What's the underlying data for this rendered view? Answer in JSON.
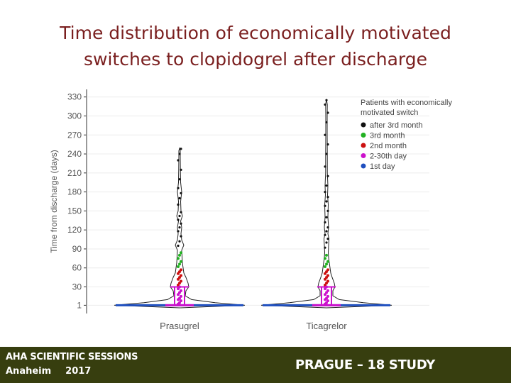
{
  "slide": {
    "title_line1": "Time distribution of economically motivated",
    "title_line2": "switches to clopidogrel after discharge"
  },
  "footer": {
    "conference": "AHA SCIENTIFIC SESSIONS",
    "city": "Anaheim",
    "year": "2017",
    "study": "PRAGUE – 18 STUDY"
  },
  "colors": {
    "after_3rd_month": "#111111",
    "third_month": "#22b022",
    "second_month": "#cc1111",
    "days_2_30": "#cc11cc",
    "first_day": "#1f4fbf"
  },
  "chart_data": {
    "type": "violin",
    "ylabel": "Time from discharge (days)",
    "y_ticks": [
      1,
      30,
      60,
      90,
      120,
      150,
      180,
      210,
      240,
      270,
      300,
      330
    ],
    "ylim": [
      -12,
      342
    ],
    "categories": [
      "Prasugrel",
      "Ticagrelor"
    ],
    "legend": {
      "title_line1": "Patients with economically",
      "title_line2": "motivated switch",
      "position": "top-right",
      "entries": [
        {
          "key": "after_3rd_month",
          "label": "after 3rd month"
        },
        {
          "key": "third_month",
          "label": "3rd month"
        },
        {
          "key": "second_month",
          "label": "2nd month"
        },
        {
          "key": "days_2_30",
          "label": "2-30th day"
        },
        {
          "key": "first_day",
          "label": "1st day"
        }
      ]
    },
    "groups": [
      {
        "name": "Prasugrel",
        "max_day": 248,
        "median": 1,
        "iqr": [
          1,
          30
        ],
        "points": {
          "first_day": [
            1
          ],
          "days_2_30": [
            3,
            5,
            8,
            10,
            12,
            15,
            18,
            21,
            24,
            27,
            30
          ],
          "second_month": [
            33,
            36,
            39,
            42,
            45,
            48,
            51,
            54,
            57
          ],
          "third_month": [
            62,
            66,
            70,
            75,
            80,
            84
          ],
          "after_3rd_month": [
            95,
            102,
            110,
            118,
            124,
            130,
            136,
            142,
            148,
            160,
            170,
            178,
            186,
            200,
            215,
            230,
            240,
            248
          ]
        }
      },
      {
        "name": "Ticagrelor",
        "max_day": 325,
        "median": 1,
        "iqr": [
          1,
          30
        ],
        "points": {
          "first_day": [
            1
          ],
          "days_2_30": [
            3,
            5,
            8,
            10,
            12,
            15,
            18,
            21,
            24,
            27,
            30
          ],
          "second_month": [
            33,
            36,
            39,
            42,
            45,
            48,
            51,
            54,
            57
          ],
          "third_month": [
            62,
            66,
            70,
            75,
            80
          ],
          "after_3rd_month": [
            92,
            100,
            106,
            112,
            118,
            124,
            132,
            140,
            150,
            158,
            165,
            172,
            180,
            190,
            205,
            220,
            240,
            255,
            270,
            290,
            305,
            318,
            325
          ]
        }
      }
    ]
  }
}
